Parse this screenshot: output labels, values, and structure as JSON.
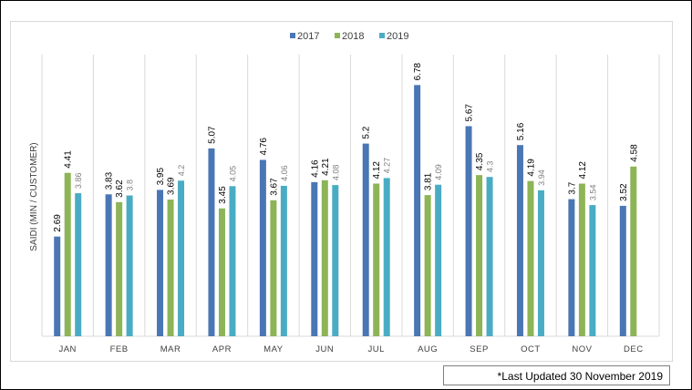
{
  "footnote": "*Last Updated 30 November 2019",
  "chart_data": {
    "type": "bar",
    "title": "",
    "xlabel": "",
    "ylabel": "SAIDI (MIN / CUSTOMER)",
    "ylim": [
      0,
      7.6
    ],
    "legend_position": "top-center",
    "grid": "vertical-category-separators",
    "categories": [
      "JAN",
      "FEB",
      "MAR",
      "APR",
      "MAY",
      "JUN",
      "JUL",
      "AUG",
      "SEP",
      "OCT",
      "NOV",
      "DEC"
    ],
    "series": [
      {
        "name": "2017",
        "color": "#4a76b4",
        "label_color": "#000000",
        "values": [
          2.69,
          3.83,
          3.95,
          5.07,
          4.76,
          4.16,
          5.2,
          6.78,
          5.67,
          5.16,
          3.7,
          3.52
        ],
        "labels": [
          "2.69",
          "3.83",
          "3.95",
          "5.07",
          "4.76",
          "4.16",
          "5.2",
          "6.78",
          "5.67",
          "5.16",
          "3.7",
          "3.52"
        ]
      },
      {
        "name": "2018",
        "color": "#8db456",
        "label_color": "#000000",
        "values": [
          4.41,
          3.62,
          3.69,
          3.45,
          3.67,
          4.21,
          4.12,
          3.81,
          4.35,
          4.19,
          4.12,
          4.58
        ],
        "labels": [
          "4.41",
          "3.62",
          "3.69",
          "3.45",
          "3.67",
          "4.21",
          "4.12",
          "3.81",
          "4.35",
          "4.19",
          "4.12",
          "4.58"
        ]
      },
      {
        "name": "2019",
        "color": "#4aacc4",
        "label_color": "#7f7f7f",
        "values": [
          3.86,
          3.8,
          4.2,
          4.05,
          4.06,
          4.08,
          4.27,
          4.09,
          4.3,
          3.94,
          3.54,
          null
        ],
        "labels": [
          "3.86",
          "3.8",
          "4.2",
          "4.05",
          "4.06",
          "4.08",
          "4.27",
          "4.09",
          "4.3",
          "3.94",
          "3.54",
          null
        ]
      }
    ]
  }
}
